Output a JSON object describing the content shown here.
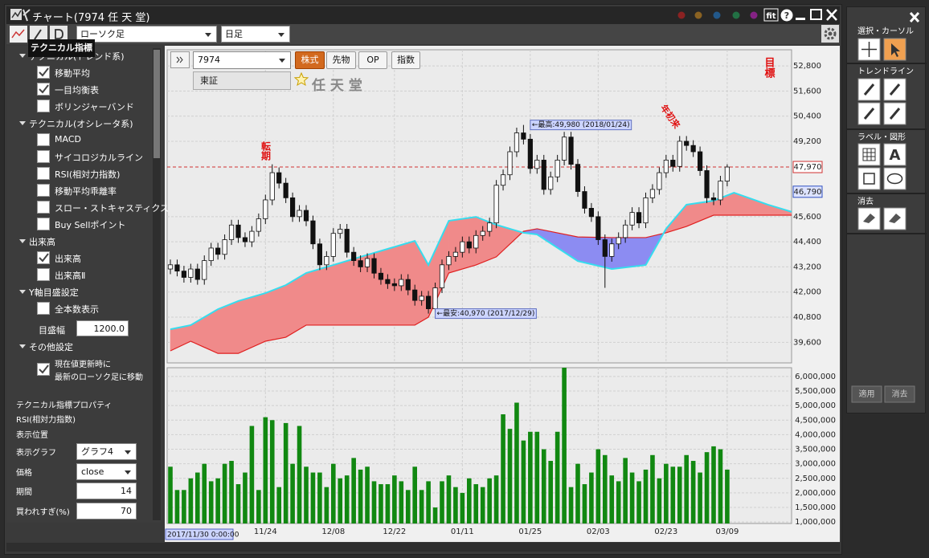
{
  "window": {
    "title": "チャート(7974 任 天 堂)",
    "fit_label": "fit",
    "help_label": "?"
  },
  "toolbar": {
    "chart_style": "ローソク足",
    "period": "日足"
  },
  "left_panel": {
    "tooltip": "テクニカル指標",
    "sections": [
      {
        "title": "テクニカル(トレンド系)",
        "items": [
          {
            "label": "移動平均",
            "checked": true
          },
          {
            "label": "一目均衡表",
            "checked": true
          },
          {
            "label": "ボリンジャーバンド",
            "checked": false
          }
        ]
      },
      {
        "title": "テクニカル(オシレータ系)",
        "items": [
          {
            "label": "MACD",
            "checked": false
          },
          {
            "label": "サイコロジカルライン",
            "checked": false
          },
          {
            "label": "RSI(相対力指数)",
            "checked": false
          },
          {
            "label": "移動平均乖離率",
            "checked": false
          },
          {
            "label": "スロー・ストキャスティクス",
            "checked": false
          },
          {
            "label": "Buy Sellポイント",
            "checked": false
          }
        ]
      },
      {
        "title": "出来高",
        "items": [
          {
            "label": "出来高",
            "checked": true
          },
          {
            "label": "出来高Ⅱ",
            "checked": false
          }
        ]
      },
      {
        "title": "Y軸目盛設定",
        "items": [
          {
            "label": "全本数表示",
            "checked": false
          }
        ],
        "field": {
          "label": "目盛幅",
          "value": "1200.0"
        }
      },
      {
        "title": "その他設定",
        "items": [
          {
            "lines": [
              "現在値更新時に",
              "最新のローソク足に移動"
            ],
            "checked": true
          }
        ]
      }
    ],
    "properties": {
      "title": "テクニカル指標プロパティ",
      "indicator": "RSI(相対力指数)",
      "section": "表示位置",
      "fields": [
        {
          "label": "表示グラフ",
          "value": "グラフ4",
          "kind": "select"
        },
        {
          "label": "価格",
          "value": "close",
          "kind": "select"
        },
        {
          "label": "期間",
          "value": 14,
          "kind": "input"
        },
        {
          "label": "買われすぎ(%)",
          "value": 70,
          "kind": "input"
        }
      ]
    }
  },
  "tools_panel": {
    "sections": [
      "選択・カーソル",
      "トレンドライン",
      "ラベル・図形",
      "消去"
    ],
    "text_tool": "A",
    "buttons": [
      "適用",
      "消去"
    ]
  },
  "chart_data": [
    {
      "type": "candlestick",
      "symbol": "7974",
      "markets": [
        "株式",
        "先物",
        "OP",
        "指数"
      ],
      "active_market": 0,
      "exchange": "東証",
      "name": "任 天 堂",
      "open": [
        43100,
        43300,
        43000,
        42700,
        43100,
        42600,
        43500,
        44100,
        43800,
        44500,
        45200,
        44600,
        44400,
        44900,
        45500,
        46400,
        47700,
        47200,
        46500,
        45600,
        45900,
        45400,
        44300,
        43300,
        43700,
        44800,
        45000,
        43900,
        43500,
        43200,
        43600,
        42900,
        42600,
        42400,
        42300,
        42600,
        42100,
        41600,
        41800,
        41200,
        42200,
        43300,
        43700,
        43900,
        44400,
        44100,
        44700,
        44900,
        45300,
        47100,
        47600,
        48700,
        49600,
        49300,
        47900,
        48300,
        46900,
        47500,
        48300,
        49400,
        48100,
        46800,
        46000,
        45600,
        44500,
        43700,
        44300,
        44600,
        45200,
        45800,
        45300,
        46500,
        46900,
        47700,
        48300,
        48000,
        49200,
        49000,
        48700,
        47800,
        46500,
        46400,
        47300
      ],
      "high": [
        43550,
        43550,
        43250,
        43350,
        43350,
        43750,
        44350,
        44350,
        44750,
        45450,
        45450,
        44850,
        45150,
        45750,
        46650,
        48100,
        47950,
        47450,
        46750,
        46150,
        46150,
        45650,
        44550,
        43950,
        45050,
        45250,
        45250,
        44150,
        43750,
        43850,
        43850,
        43150,
        42850,
        42650,
        42850,
        42850,
        42350,
        42050,
        42050,
        42450,
        43550,
        43950,
        44150,
        44650,
        44650,
        44950,
        45150,
        45550,
        47350,
        47850,
        48950,
        49850,
        49980,
        49550,
        48550,
        48550,
        47750,
        48550,
        49650,
        49650,
        48350,
        47050,
        46250,
        45850,
        44750,
        44550,
        44850,
        45450,
        46050,
        46050,
        46750,
        47150,
        47950,
        48550,
        48550,
        49450,
        49450,
        49250,
        48950,
        48050,
        46750,
        47550,
        48100
      ],
      "low": [
        42850,
        42750,
        42450,
        42450,
        42350,
        42350,
        43250,
        43550,
        43550,
        44250,
        44350,
        44150,
        44150,
        44650,
        45250,
        46150,
        46950,
        46250,
        45350,
        45350,
        45150,
        44050,
        43050,
        43050,
        43450,
        44550,
        43650,
        43250,
        42950,
        42950,
        42650,
        42350,
        42150,
        42050,
        42050,
        41850,
        41350,
        41350,
        40970,
        41050,
        41950,
        43050,
        43450,
        43650,
        43850,
        43850,
        44450,
        44650,
        45050,
        46850,
        47350,
        48450,
        49050,
        47650,
        47650,
        46650,
        46650,
        47250,
        48050,
        47850,
        46550,
        45750,
        45350,
        44250,
        42200,
        43450,
        44050,
        44350,
        44950,
        45050,
        45050,
        46250,
        46650,
        47450,
        47750,
        47750,
        48750,
        48450,
        47550,
        46250,
        46150,
        46150,
        47050
      ],
      "close": [
        43300,
        43000,
        42700,
        43100,
        42600,
        43500,
        44100,
        43800,
        44500,
        45200,
        44600,
        44400,
        44900,
        45500,
        46400,
        47700,
        47200,
        46500,
        45600,
        45900,
        45400,
        44300,
        43300,
        43700,
        44800,
        45000,
        43900,
        43500,
        43200,
        43600,
        42900,
        42600,
        42400,
        42300,
        42600,
        42100,
        41600,
        41800,
        41200,
        42200,
        43300,
        43700,
        43900,
        44400,
        44100,
        44700,
        44900,
        45300,
        47100,
        47600,
        48700,
        49600,
        49300,
        47900,
        48300,
        46900,
        47500,
        48300,
        49400,
        48100,
        46800,
        46000,
        45600,
        44500,
        43700,
        44300,
        44600,
        45200,
        45800,
        45300,
        46500,
        46900,
        47700,
        48300,
        48000,
        49200,
        49000,
        48700,
        47800,
        46500,
        46400,
        47300,
        47970
      ],
      "ylim": [
        38615,
        53570
      ],
      "yticks": [
        {
          "value": 52800,
          "label": "52,800"
        },
        {
          "value": 51600,
          "label": "51,600"
        },
        {
          "value": 50400,
          "label": "50,400"
        },
        {
          "value": 49200,
          "label": "49,200"
        },
        {
          "value": 45600,
          "label": "45,600"
        },
        {
          "value": 44400,
          "label": "44,400"
        },
        {
          "value": 43200,
          "label": "43,200"
        },
        {
          "value": 42000,
          "label": "42,000"
        },
        {
          "value": 40800,
          "label": "40,800"
        },
        {
          "value": 39600,
          "label": "39,600"
        }
      ],
      "grid": true,
      "price_lines": [
        {
          "value": 47970,
          "label": "47,970",
          "color": "#d03030",
          "dashed": true
        },
        {
          "value": 46790,
          "label": "46,790",
          "color": "#3050c0",
          "dashed": false
        }
      ],
      "cloud": {
        "x": [
          0,
          3,
          7,
          10,
          14,
          17,
          20,
          24,
          28,
          32,
          36,
          38,
          41,
          45,
          48,
          52,
          54,
          60,
          65,
          70,
          73,
          76,
          80,
          83,
          88,
          92
        ],
        "span_a": [
          40220,
          40420,
          41180,
          41570,
          41950,
          42330,
          42910,
          43290,
          43680,
          44060,
          44440,
          43290,
          45400,
          45590,
          45210,
          44830,
          44750,
          43480,
          43100,
          43290,
          45020,
          46170,
          46360,
          46740,
          46170,
          45780
        ],
        "span_b": [
          39190,
          39650,
          39070,
          39070,
          39650,
          39840,
          40420,
          40420,
          40420,
          40420,
          40420,
          40800,
          42910,
          43290,
          43680,
          44900,
          45020,
          44630,
          44600,
          44600,
          44830,
          45130,
          45670,
          45670,
          45670,
          45670
        ],
        "colors": [
          "#f08a8a",
          "#8c8cf2"
        ]
      },
      "annotations": [
        {
          "index": 53,
          "value": 49980,
          "label": "←最高:49,980 (2018/01/24)"
        },
        {
          "index": 39,
          "value": 40970,
          "label": "←最安:40,970 (2017/12/29)"
        }
      ],
      "marks": {
        "turning": "転期",
        "year_high": "年初来",
        "target": "目標"
      }
    },
    {
      "type": "bar",
      "color": "#118811",
      "categories": [
        null,
        null,
        null,
        null,
        null,
        null,
        null,
        null,
        null,
        null,
        null,
        null,
        null,
        null,
        "11/24",
        null,
        null,
        null,
        null,
        null,
        null,
        null,
        null,
        null,
        "12/08",
        null,
        null,
        null,
        null,
        null,
        null,
        null,
        null,
        "12/22",
        null,
        null,
        null,
        null,
        null,
        null,
        null,
        null,
        null,
        "01/11",
        null,
        null,
        null,
        null,
        null,
        null,
        null,
        null,
        null,
        "01/25",
        null,
        null,
        null,
        null,
        null,
        null,
        null,
        null,
        null,
        "02/03",
        null,
        null,
        null,
        null,
        null,
        null,
        null,
        null,
        null,
        "02/23",
        null,
        null,
        null,
        null,
        null,
        null,
        null,
        null,
        "03/09"
      ],
      "values": [
        2900000,
        2100000,
        2100000,
        2500000,
        2700000,
        3000000,
        2400000,
        2500000,
        3000000,
        3100000,
        2300000,
        2700000,
        4300000,
        2100000,
        4600000,
        4500000,
        2200000,
        4400000,
        3000000,
        4300000,
        2900000,
        2700000,
        2700000,
        2200000,
        3000000,
        2500000,
        2600000,
        3200000,
        2800000,
        2900000,
        2400000,
        2300000,
        2300000,
        2600000,
        2400000,
        2100000,
        2900000,
        2100000,
        2400000,
        1500000,
        2400000,
        2600000,
        2200000,
        2000000,
        2500000,
        2300000,
        2200000,
        2500000,
        2600000,
        4700000,
        4200000,
        5100000,
        3800000,
        4100000,
        4100000,
        3500000,
        3100000,
        4100000,
        6300000,
        2200000,
        3000000,
        2300000,
        2700000,
        3500000,
        3300000,
        2600000,
        2400000,
        3200000,
        2700000,
        2400000,
        2800000,
        3300000,
        2500000,
        3000000,
        2900000,
        2900000,
        3300000,
        3100000,
        2700000,
        3400000,
        3600000,
        3500000,
        2800000
      ],
      "ylim": [
        950000,
        6300000
      ],
      "yticks": [
        {
          "value": 1000000,
          "label": "1,000,000"
        },
        {
          "value": 1500000,
          "label": "1,500,000"
        },
        {
          "value": 2000000,
          "label": "2,000,000"
        },
        {
          "value": 2500000,
          "label": "2,500,000"
        },
        {
          "value": 3000000,
          "label": "3,000,000"
        },
        {
          "value": 3500000,
          "label": "3,500,000"
        },
        {
          "value": 4000000,
          "label": "4,000,000"
        },
        {
          "value": 4500000,
          "label": "4,500,000"
        },
        {
          "value": 5000000,
          "label": "5,000,000"
        },
        {
          "value": 5500000,
          "label": "5,500,000"
        },
        {
          "value": 6000000,
          "label": "6,000,000"
        }
      ],
      "cursor_label": "2017/11/30 0:00:00"
    }
  ]
}
